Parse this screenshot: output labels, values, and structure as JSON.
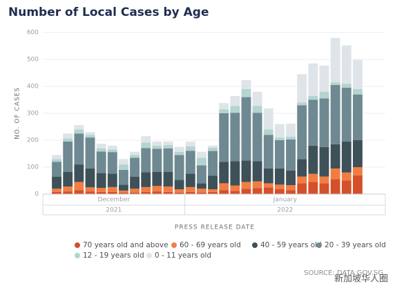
{
  "chart_data": {
    "type": "stacked_bar",
    "title": "Number of Local Cases by Age",
    "y_label": "NO. OF CASES",
    "x_label": "PRESS RELEASE DATE",
    "source": "SOURCE: DATA.GOV.SG",
    "watermark": "新加坡华人圈",
    "categories": [
      null,
      null,
      null,
      null,
      null,
      null,
      null,
      null,
      null,
      null,
      null,
      null,
      null,
      null,
      null,
      null,
      null,
      null,
      null,
      null,
      null,
      null,
      null,
      null,
      null,
      null,
      null,
      null
    ],
    "x_groups": [
      {
        "month": "December",
        "year": "2021",
        "categories": 12
      },
      {
        "month": "January",
        "year": "2022",
        "categories": 16
      }
    ],
    "ylim": [
      0,
      600
    ],
    "yticks": [
      0,
      100,
      200,
      300,
      400,
      500,
      600
    ],
    "grid": true,
    "legend": "bottom",
    "series": [
      {
        "name": "70 years old and above",
        "color": "#d4502a",
        "values": [
          8,
          10,
          15,
          10,
          8,
          8,
          5,
          6,
          8,
          10,
          8,
          6,
          8,
          6,
          8,
          15,
          12,
          20,
          22,
          25,
          18,
          15,
          40,
          45,
          40,
          55,
          50,
          70
        ]
      },
      {
        "name": "60 - 69 years old",
        "color": "#f27d42",
        "values": [
          12,
          18,
          30,
          15,
          15,
          18,
          8,
          14,
          18,
          20,
          20,
          12,
          18,
          14,
          10,
          25,
          20,
          25,
          25,
          15,
          17,
          18,
          25,
          30,
          25,
          40,
          30,
          30
        ]
      },
      {
        "name": "40 - 59 years old",
        "color": "#3e5159",
        "values": [
          45,
          55,
          65,
          70,
          55,
          50,
          22,
          45,
          55,
          52,
          55,
          35,
          50,
          20,
          50,
          80,
          90,
          80,
          75,
          55,
          60,
          55,
          65,
          105,
          110,
          90,
          115,
          100
        ]
      },
      {
        "name": "20 - 39 years old",
        "color": "#6e8991",
        "values": [
          55,
          112,
          115,
          115,
          80,
          80,
          55,
          70,
          90,
          86,
          87,
          92,
          85,
          67,
          92,
          180,
          180,
          235,
          180,
          125,
          105,
          115,
          200,
          170,
          180,
          220,
          200,
          170
        ]
      },
      {
        "name": "12 - 19 years old",
        "color": "#b3d4cf",
        "values": [
          10,
          12,
          15,
          10,
          12,
          10,
          20,
          10,
          20,
          12,
          12,
          12,
          16,
          28,
          12,
          15,
          25,
          30,
          25,
          20,
          10,
          10,
          10,
          15,
          25,
          10,
          15,
          20
        ]
      },
      {
        "name": "0 - 11 years old",
        "color": "#dfe4e8",
        "values": [
          15,
          18,
          16,
          10,
          17,
          14,
          20,
          12,
          24,
          15,
          13,
          18,
          18,
          22,
          8,
          23,
          37,
          33,
          53,
          78,
          50,
          49,
          105,
          120,
          97,
          165,
          142,
          108
        ]
      }
    ]
  }
}
